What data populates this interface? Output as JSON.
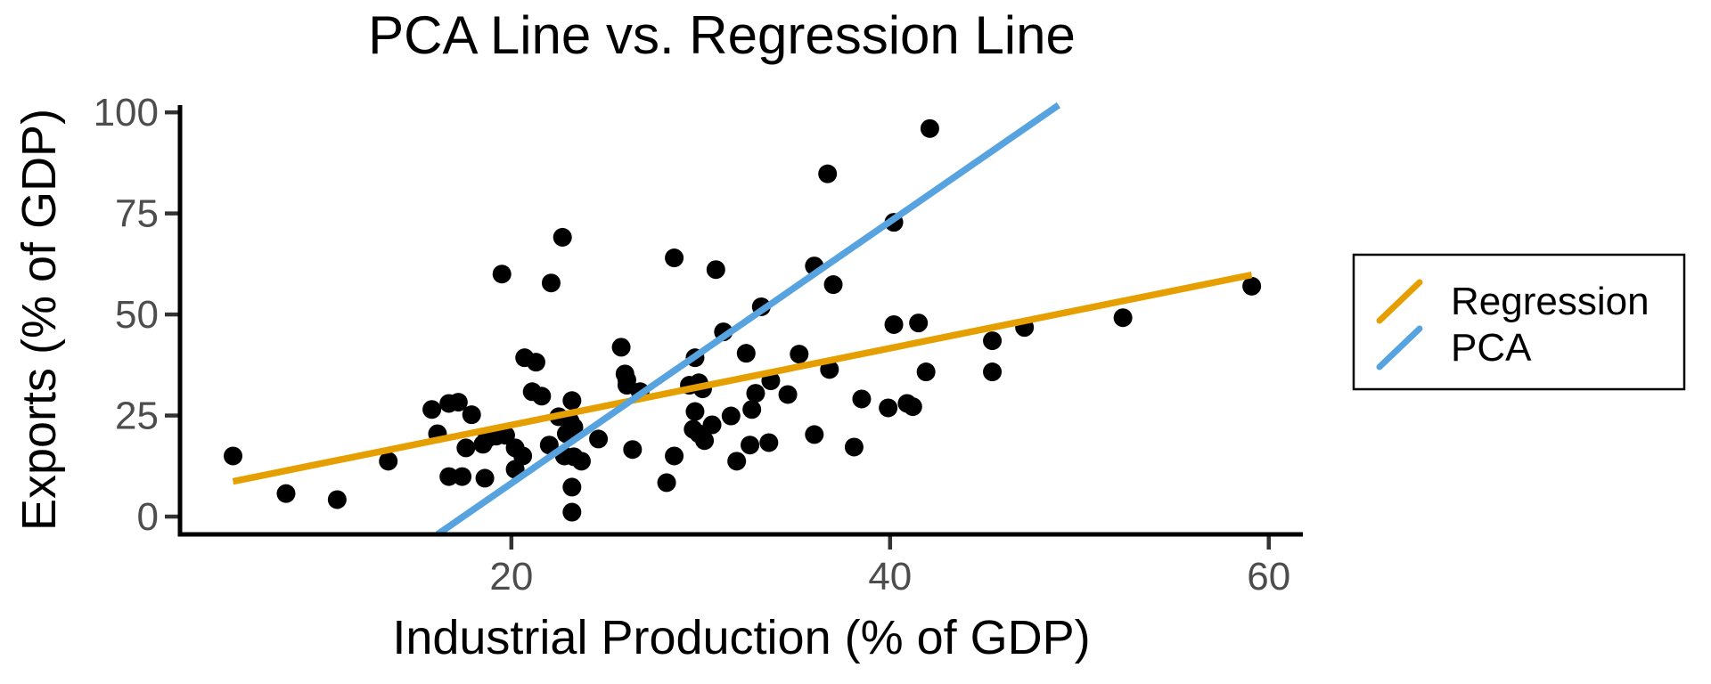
{
  "chart_data": {
    "type": "scatter",
    "title": "PCA Line vs. Regression Line",
    "xlabel": "Industrial Production (% of GDP)",
    "ylabel": "Exports (% of GDP)",
    "x_ticks": [
      20,
      40,
      60
    ],
    "y_ticks": [
      0,
      25,
      50,
      75,
      100
    ],
    "xlim": [
      2.5,
      61.8
    ],
    "ylim": [
      -4.4,
      101.8
    ],
    "grid": false,
    "point_color": "#000000",
    "axis_color": "#000000",
    "tick_color": "#333333",
    "tick_label_color": "#4D4D4D",
    "points": [
      [
        5.3,
        15.0
      ],
      [
        8.1,
        5.7
      ],
      [
        10.8,
        4.2
      ],
      [
        13.5,
        13.7
      ],
      [
        15.8,
        26.5
      ],
      [
        16.7,
        28.0
      ],
      [
        17.2,
        28.3
      ],
      [
        17.9,
        25.2
      ],
      [
        16.1,
        20.5
      ],
      [
        16.7,
        9.9
      ],
      [
        17.4,
        9.9
      ],
      [
        17.6,
        17.0
      ],
      [
        18.5,
        17.9
      ],
      [
        18.6,
        9.5
      ],
      [
        18.7,
        19.2
      ],
      [
        19.2,
        19.9
      ],
      [
        19.7,
        20.1
      ],
      [
        19.5,
        60.0
      ],
      [
        20.7,
        39.3
      ],
      [
        21.3,
        38.2
      ],
      [
        21.1,
        30.9
      ],
      [
        21.6,
        29.8
      ],
      [
        20.2,
        17.0
      ],
      [
        20.6,
        15.0
      ],
      [
        20.2,
        11.7
      ],
      [
        22.0,
        17.7
      ],
      [
        22.1,
        57.8
      ],
      [
        22.7,
        69.1
      ],
      [
        22.8,
        15.0
      ],
      [
        23.3,
        14.8
      ],
      [
        23.7,
        13.7
      ],
      [
        23.2,
        7.3
      ],
      [
        23.2,
        1.1
      ],
      [
        22.5,
        24.7
      ],
      [
        23.1,
        23.6
      ],
      [
        23.2,
        28.7
      ],
      [
        22.9,
        20.5
      ],
      [
        24.6,
        19.2
      ],
      [
        25.8,
        41.9
      ],
      [
        26.0,
        35.3
      ],
      [
        26.1,
        33.8
      ],
      [
        26.1,
        32.5
      ],
      [
        26.8,
        30.9
      ],
      [
        26.4,
        16.6
      ],
      [
        28.6,
        15.0
      ],
      [
        28.2,
        8.4
      ],
      [
        28.6,
        64.0
      ],
      [
        29.4,
        32.5
      ],
      [
        29.9,
        33.1
      ],
      [
        30.1,
        31.6
      ],
      [
        29.7,
        39.3
      ],
      [
        29.7,
        26.0
      ],
      [
        29.6,
        21.6
      ],
      [
        29.9,
        20.5
      ],
      [
        30.2,
        18.8
      ],
      [
        30.6,
        22.7
      ],
      [
        30.8,
        61.1
      ],
      [
        31.2,
        45.7
      ],
      [
        31.6,
        24.9
      ],
      [
        31.9,
        13.7
      ],
      [
        32.4,
        40.4
      ],
      [
        32.6,
        17.7
      ],
      [
        32.7,
        26.5
      ],
      [
        32.9,
        30.5
      ],
      [
        33.2,
        51.9
      ],
      [
        33.6,
        18.3
      ],
      [
        33.7,
        33.6
      ],
      [
        34.6,
        30.2
      ],
      [
        35.2,
        40.2
      ],
      [
        36.0,
        62.0
      ],
      [
        36.0,
        20.3
      ],
      [
        36.7,
        84.8
      ],
      [
        36.8,
        36.4
      ],
      [
        37.0,
        57.4
      ],
      [
        38.1,
        17.2
      ],
      [
        38.5,
        29.1
      ],
      [
        39.9,
        26.9
      ],
      [
        40.2,
        47.5
      ],
      [
        40.2,
        72.8
      ],
      [
        40.9,
        28.0
      ],
      [
        41.2,
        27.2
      ],
      [
        41.5,
        47.9
      ],
      [
        41.9,
        35.8
      ],
      [
        42.1,
        96.0
      ],
      [
        45.4,
        43.5
      ],
      [
        45.4,
        35.8
      ],
      [
        47.1,
        46.8
      ],
      [
        52.3,
        49.2
      ],
      [
        59.1,
        57.0
      ],
      [
        23.3,
        22.1
      ]
    ],
    "lines": [
      {
        "name": "Regression",
        "color": "#E69F00",
        "x1": 5.3,
        "y1": 8.7,
        "x2": 59.1,
        "y2": 59.8
      },
      {
        "name": "PCA",
        "color": "#56A3E0",
        "x1": 16.1,
        "y1": -4.4,
        "x2": 48.9,
        "y2": 101.8
      }
    ],
    "legend": {
      "position": "right",
      "entries": [
        {
          "label": "Regression",
          "color": "#E69F00"
        },
        {
          "label": "PCA",
          "color": "#56A3E0"
        }
      ]
    }
  }
}
